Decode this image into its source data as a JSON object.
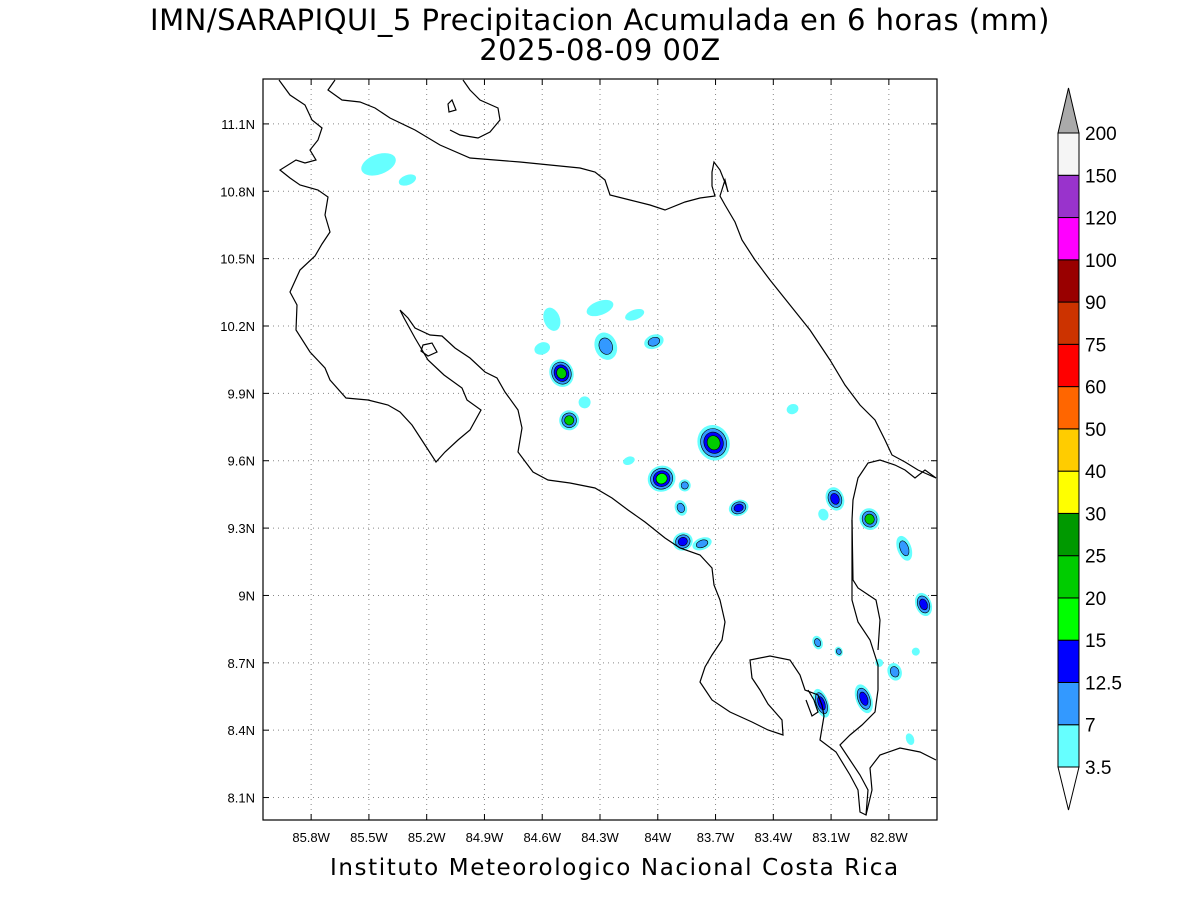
{
  "header": {
    "title_line1": "IMN/SARAPIQUI_5 Precipitacion Acumulada en 6 horas (mm)",
    "title_line2": "2025-08-09 00Z"
  },
  "footer": {
    "credit": "Instituto Meteorologico Nacional Costa Rica"
  },
  "map": {
    "lon_range": [
      -86.05,
      -82.55
    ],
    "lat_range": [
      8.0,
      11.3
    ],
    "lon_ticks": [
      {
        "value": -85.8,
        "label": "85.8W"
      },
      {
        "value": -85.5,
        "label": "85.5W"
      },
      {
        "value": -85.2,
        "label": "85.2W"
      },
      {
        "value": -84.9,
        "label": "84.9W"
      },
      {
        "value": -84.6,
        "label": "84.6W"
      },
      {
        "value": -84.3,
        "label": "84.3W"
      },
      {
        "value": -84.0,
        "label": "84W"
      },
      {
        "value": -83.7,
        "label": "83.7W"
      },
      {
        "value": -83.4,
        "label": "83.4W"
      },
      {
        "value": -83.1,
        "label": "83.1W"
      },
      {
        "value": -82.8,
        "label": "82.8W"
      }
    ],
    "lat_ticks": [
      {
        "value": 11.1,
        "label": "11.1N"
      },
      {
        "value": 10.8,
        "label": "10.8N"
      },
      {
        "value": 10.5,
        "label": "10.5N"
      },
      {
        "value": 10.2,
        "label": "10.2N"
      },
      {
        "value": 9.9,
        "label": "9.9N"
      },
      {
        "value": 9.6,
        "label": "9.6N"
      },
      {
        "value": 9.3,
        "label": "9.3N"
      },
      {
        "value": 9.0,
        "label": "9N"
      },
      {
        "value": 8.7,
        "label": "8.7N"
      },
      {
        "value": 8.4,
        "label": "8.4N"
      },
      {
        "value": 8.1,
        "label": "8.1N"
      }
    ],
    "grid": true
  },
  "colorbar": {
    "labels": [
      "3.5",
      "7",
      "12.5",
      "15",
      "20",
      "25",
      "30",
      "40",
      "50",
      "60",
      "75",
      "90",
      "100",
      "120",
      "150",
      "200"
    ],
    "colors": [
      "#66ffff",
      "#3399ff",
      "#0000ff",
      "#00ff00",
      "#00cc00",
      "#009900",
      "#ffff00",
      "#ffcc00",
      "#ff6600",
      "#ff0000",
      "#cc3300",
      "#990000",
      "#ff00ff",
      "#9933cc",
      "#f5f5f5"
    ],
    "over_color": "#aaaaaa",
    "under_color": "#ffffff"
  },
  "precip_cells": [
    {
      "lon": -85.45,
      "lat": 10.92,
      "rx": 18,
      "ry": 10,
      "levels": [
        "#66ffff"
      ]
    },
    {
      "lon": -85.3,
      "lat": 10.85,
      "rx": 9,
      "ry": 5,
      "levels": [
        "#66ffff"
      ]
    },
    {
      "lon": -84.55,
      "lat": 10.23,
      "rx": 8,
      "ry": 12,
      "levels": [
        "#66ffff"
      ]
    },
    {
      "lon": -84.6,
      "lat": 10.1,
      "rx": 8,
      "ry": 6,
      "levels": [
        "#66ffff"
      ]
    },
    {
      "lon": -84.5,
      "lat": 9.99,
      "rx": 12,
      "ry": 14,
      "levels": [
        "#66ffff",
        "#3399ff",
        "#0000ff",
        "#00cc00"
      ]
    },
    {
      "lon": -84.3,
      "lat": 10.28,
      "rx": 14,
      "ry": 7,
      "levels": [
        "#66ffff"
      ]
    },
    {
      "lon": -84.12,
      "lat": 10.25,
      "rx": 10,
      "ry": 5,
      "levels": [
        "#66ffff"
      ]
    },
    {
      "lon": -84.27,
      "lat": 10.11,
      "rx": 11,
      "ry": 14,
      "levels": [
        "#66ffff",
        "#3399ff"
      ]
    },
    {
      "lon": -84.02,
      "lat": 10.13,
      "rx": 10,
      "ry": 7,
      "levels": [
        "#66ffff",
        "#3399ff"
      ]
    },
    {
      "lon": -84.46,
      "lat": 9.78,
      "rx": 10,
      "ry": 10,
      "levels": [
        "#66ffff",
        "#3399ff",
        "#00cc00"
      ]
    },
    {
      "lon": -84.38,
      "lat": 9.86,
      "rx": 6,
      "ry": 6,
      "levels": [
        "#66ffff"
      ]
    },
    {
      "lon": -84.15,
      "lat": 9.6,
      "rx": 6,
      "ry": 4,
      "levels": [
        "#66ffff"
      ]
    },
    {
      "lon": -83.98,
      "lat": 9.52,
      "rx": 14,
      "ry": 13,
      "levels": [
        "#66ffff",
        "#3399ff",
        "#0000ff",
        "#00ff00"
      ]
    },
    {
      "lon": -83.86,
      "lat": 9.49,
      "rx": 6,
      "ry": 6,
      "levels": [
        "#66ffff",
        "#3399ff"
      ]
    },
    {
      "lon": -83.88,
      "lat": 9.39,
      "rx": 6,
      "ry": 8,
      "levels": [
        "#66ffff",
        "#3399ff"
      ]
    },
    {
      "lon": -83.71,
      "lat": 9.68,
      "rx": 16,
      "ry": 18,
      "levels": [
        "#66ffff",
        "#3399ff",
        "#0000ff",
        "#00cc00"
      ]
    },
    {
      "lon": -83.58,
      "lat": 9.39,
      "rx": 10,
      "ry": 8,
      "levels": [
        "#66ffff",
        "#3399ff",
        "#0000ff"
      ]
    },
    {
      "lon": -83.87,
      "lat": 9.24,
      "rx": 10,
      "ry": 9,
      "levels": [
        "#66ffff",
        "#3399ff",
        "#0000ff"
      ]
    },
    {
      "lon": -83.77,
      "lat": 9.23,
      "rx": 10,
      "ry": 6,
      "levels": [
        "#66ffff",
        "#3399ff"
      ]
    },
    {
      "lon": -83.3,
      "lat": 9.83,
      "rx": 6,
      "ry": 5,
      "levels": [
        "#66ffff"
      ]
    },
    {
      "lon": -83.08,
      "lat": 9.43,
      "rx": 9,
      "ry": 12,
      "levels": [
        "#66ffff",
        "#3399ff",
        "#0000ff"
      ]
    },
    {
      "lon": -83.14,
      "lat": 9.36,
      "rx": 5,
      "ry": 6,
      "levels": [
        "#66ffff"
      ]
    },
    {
      "lon": -82.9,
      "lat": 9.34,
      "rx": 10,
      "ry": 11,
      "levels": [
        "#66ffff",
        "#3399ff",
        "#00cc00"
      ]
    },
    {
      "lon": -82.72,
      "lat": 9.21,
      "rx": 7,
      "ry": 13,
      "levels": [
        "#66ffff",
        "#3399ff"
      ]
    },
    {
      "lon": -82.62,
      "lat": 8.96,
      "rx": 8,
      "ry": 12,
      "levels": [
        "#66ffff",
        "#3399ff",
        "#0000ff"
      ]
    },
    {
      "lon": -83.17,
      "lat": 8.79,
      "rx": 5,
      "ry": 7,
      "levels": [
        "#66ffff",
        "#3399ff"
      ]
    },
    {
      "lon": -83.06,
      "lat": 8.75,
      "rx": 4,
      "ry": 5,
      "levels": [
        "#66ffff",
        "#3399ff"
      ]
    },
    {
      "lon": -82.77,
      "lat": 8.66,
      "rx": 7,
      "ry": 9,
      "levels": [
        "#66ffff",
        "#3399ff"
      ]
    },
    {
      "lon": -82.66,
      "lat": 8.75,
      "rx": 4,
      "ry": 4,
      "levels": [
        "#66ffff"
      ]
    },
    {
      "lon": -83.15,
      "lat": 8.52,
      "rx": 7,
      "ry": 15,
      "levels": [
        "#66ffff",
        "#3399ff",
        "#0000ff"
      ]
    },
    {
      "lon": -82.93,
      "lat": 8.54,
      "rx": 8,
      "ry": 15,
      "levels": [
        "#66ffff",
        "#3399ff",
        "#0000ff"
      ]
    },
    {
      "lon": -82.69,
      "lat": 8.36,
      "rx": 4,
      "ry": 6,
      "levels": [
        "#66ffff"
      ]
    },
    {
      "lon": -82.85,
      "lat": 8.7,
      "rx": 4,
      "ry": 4,
      "levels": [
        "#66ffff"
      ]
    }
  ]
}
